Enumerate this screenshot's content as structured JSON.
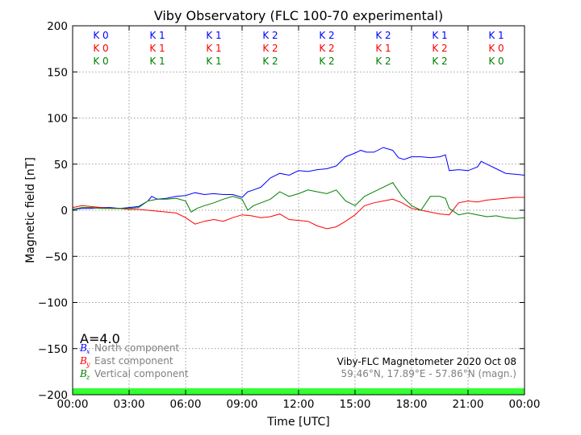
{
  "chart_data": {
    "type": "line",
    "title": "Viby Observatory (FLC 100-70 experimental)",
    "xlabel": "Time [UTC]",
    "ylabel": "Magnetic field [nT]",
    "xlim": [
      0,
      24
    ],
    "ylim": [
      -200,
      200
    ],
    "x_ticks": [
      0,
      3,
      6,
      9,
      12,
      15,
      18,
      21,
      24
    ],
    "x_tick_labels": [
      "00:00",
      "03:00",
      "06:00",
      "09:00",
      "12:00",
      "15:00",
      "18:00",
      "21:00",
      "00:00"
    ],
    "y_ticks": [
      200,
      150,
      100,
      50,
      0,
      -50,
      -100,
      -150,
      -200
    ],
    "y_tick_labels": [
      "200",
      "150",
      "100",
      "50",
      "0",
      "−50",
      "−100",
      "−150",
      "−200"
    ],
    "grid": true,
    "x_unit": "hours UTC",
    "series": [
      {
        "name": "North component",
        "symbol": "B",
        "subscript": "x",
        "color": "#0000ff",
        "x": [
          0,
          0.5,
          1,
          1.5,
          2,
          2.5,
          3,
          3.5,
          4,
          4.2,
          4.5,
          5,
          5.5,
          6,
          6.5,
          7,
          7.5,
          8,
          8.5,
          9,
          9.3,
          9.6,
          10,
          10.5,
          11,
          11.5,
          12,
          12.5,
          13,
          13.5,
          14,
          14.5,
          15,
          15.3,
          15.6,
          16,
          16.5,
          17,
          17.3,
          17.6,
          18,
          18.5,
          19,
          19.5,
          19.8,
          20,
          20.5,
          21,
          21.5,
          21.7,
          22,
          22.5,
          23,
          23.5,
          24
        ],
        "y": [
          1,
          2,
          2,
          3,
          3,
          2,
          3,
          4,
          10,
          15,
          12,
          13,
          15,
          16,
          19,
          17,
          18,
          17,
          17,
          14,
          20,
          22,
          25,
          35,
          40,
          38,
          43,
          42,
          44,
          45,
          48,
          58,
          62,
          65,
          63,
          63,
          68,
          65,
          57,
          55,
          58,
          58,
          57,
          58,
          60,
          43,
          44,
          43,
          47,
          53,
          50,
          45,
          40,
          39,
          38
        ]
      },
      {
        "name": "East component",
        "symbol": "B",
        "subscript": "y",
        "color": "#ff0000",
        "x": [
          0,
          0.5,
          1,
          1.5,
          2,
          2.5,
          3,
          3.5,
          4,
          4.5,
          5,
          5.5,
          6,
          6.5,
          7,
          7.5,
          8,
          8.5,
          9,
          9.5,
          10,
          10.5,
          11,
          11.5,
          12,
          12.5,
          13,
          13.5,
          14,
          14.5,
          15,
          15.5,
          16,
          16.5,
          17,
          17.5,
          18,
          18.5,
          19,
          19.5,
          20,
          20.5,
          21,
          21.5,
          22,
          22.5,
          23,
          23.5,
          24
        ],
        "y": [
          3,
          5,
          4,
          3,
          2,
          2,
          1,
          1,
          0,
          -1,
          -2,
          -3,
          -8,
          -15,
          -12,
          -10,
          -12,
          -8,
          -5,
          -6,
          -8,
          -7,
          -4,
          -10,
          -11,
          -12,
          -17,
          -20,
          -18,
          -12,
          -5,
          5,
          8,
          10,
          12,
          8,
          2,
          0,
          -2,
          -4,
          -5,
          8,
          10,
          9,
          11,
          12,
          13,
          14,
          14
        ]
      },
      {
        "name": "Vertical component",
        "symbol": "B",
        "subscript": "z",
        "color": "#008000",
        "x": [
          0,
          0.5,
          1,
          1.5,
          2,
          2.5,
          3,
          3.5,
          4,
          4.5,
          5,
          5.5,
          6,
          6.3,
          6.6,
          7,
          7.5,
          8,
          8.5,
          9,
          9.3,
          9.6,
          10,
          10.5,
          11,
          11.5,
          12,
          12.5,
          13,
          13.5,
          14,
          14.5,
          15,
          15.5,
          16,
          16.5,
          17,
          17.5,
          18,
          18.5,
          19,
          19.5,
          19.8,
          20,
          20.5,
          21,
          21.5,
          22,
          22.5,
          23,
          23.5,
          24
        ],
        "y": [
          1,
          3,
          3,
          2,
          2,
          2,
          2,
          3,
          10,
          12,
          12,
          13,
          10,
          -2,
          2,
          5,
          8,
          12,
          15,
          12,
          0,
          5,
          8,
          12,
          20,
          15,
          18,
          22,
          20,
          18,
          22,
          10,
          5,
          15,
          20,
          25,
          30,
          15,
          5,
          0,
          15,
          15,
          13,
          2,
          -5,
          -3,
          -5,
          -7,
          -6,
          -8,
          -9,
          -8
        ]
      }
    ],
    "k_indices": [
      {
        "x": 1.5,
        "north": "K 0",
        "east": "K 0",
        "vertical": "K 0"
      },
      {
        "x": 4.5,
        "north": "K 1",
        "east": "K 1",
        "vertical": "K 1"
      },
      {
        "x": 7.5,
        "north": "K 1",
        "east": "K 1",
        "vertical": "K 1"
      },
      {
        "x": 10.5,
        "north": "K 2",
        "east": "K 2",
        "vertical": "K 2"
      },
      {
        "x": 13.5,
        "north": "K 2",
        "east": "K 2",
        "vertical": "K 2"
      },
      {
        "x": 16.5,
        "north": "K 2",
        "east": "K 1",
        "vertical": "K 2"
      },
      {
        "x": 19.5,
        "north": "K 1",
        "east": "K 2",
        "vertical": "K 2"
      },
      {
        "x": 22.5,
        "north": "K 1",
        "east": "K 0",
        "vertical": "K 0"
      }
    ],
    "activity_band": {
      "color": "#33ff33",
      "from": -200,
      "to": -193
    }
  },
  "annotations": {
    "a_index": "A=4.0",
    "info_line1": "Viby-FLC Magnetometer 2020 Oct 08",
    "info_line2": "59.46°N, 17.89°E - 57.86°N (magn.)"
  },
  "legend": {
    "placement": "bottom-left"
  },
  "colors": {
    "north": "#0000ff",
    "east": "#ff0000",
    "vertical": "#008000"
  }
}
